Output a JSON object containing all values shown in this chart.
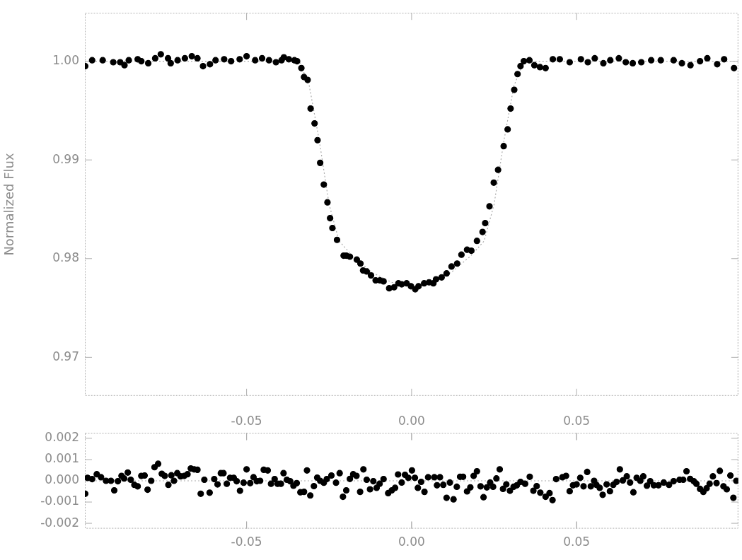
{
  "chart_data": [
    {
      "type": "scatter",
      "ylabel": "Normalized Flux",
      "xlim": [
        -0.099,
        0.099
      ],
      "xticks": [
        {
          "value": -0.05,
          "label": null
        },
        {
          "value": 0,
          "label": null
        },
        {
          "value": 0.05,
          "label": null
        }
      ],
      "ylim": [
        0.9661,
        1.0049
      ],
      "yticks": [
        0.97,
        0.98,
        0.99,
        {
          "value": 1,
          "label": "1.00"
        }
      ],
      "tick_labels": "y",
      "marker": "circle",
      "series": [
        {
          "color": "#000000",
          "x": [
            -0.0989,
            -0.0968,
            -0.0936,
            -0.0904,
            -0.0883,
            -0.087,
            -0.0857,
            -0.083,
            -0.0819,
            -0.0798,
            -0.0777,
            -0.076,
            -0.0738,
            -0.073,
            -0.0709,
            -0.0687,
            -0.0666,
            -0.0649,
            -0.0632,
            -0.0611,
            -0.0594,
            -0.0568,
            -0.0547,
            -0.0521,
            -0.05,
            -0.0474,
            -0.0453,
            -0.0432,
            -0.0411,
            -0.0394,
            -0.0387,
            -0.0372,
            -0.0355,
            -0.0347,
            -0.0334,
            -0.0326,
            -0.0315,
            -0.0306,
            -0.0294,
            -0.0285,
            -0.0277,
            -0.0266,
            -0.0255,
            -0.0247,
            -0.024,
            -0.0226,
            -0.0206,
            -0.0198,
            -0.0187,
            -0.0166,
            -0.0155,
            -0.0147,
            -0.0136,
            -0.0123,
            -0.0109,
            -0.0096,
            -0.0085,
            -0.0068,
            -0.0053,
            -0.004,
            -0.003,
            -0.0015,
            -0.0002,
            0.0011,
            0.0021,
            0.0038,
            0.0053,
            0.0066,
            0.0074,
            0.0091,
            0.0106,
            0.0121,
            0.0138,
            0.0151,
            0.0168,
            0.0181,
            0.0198,
            0.0215,
            0.0223,
            0.0236,
            0.0249,
            0.0262,
            0.0279,
            0.0291,
            0.03,
            0.0311,
            0.0321,
            0.033,
            0.034,
            0.0357,
            0.0372,
            0.0389,
            0.0406,
            0.0428,
            0.0449,
            0.0479,
            0.0513,
            0.0534,
            0.0555,
            0.0581,
            0.0602,
            0.0628,
            0.0649,
            0.067,
            0.0696,
            0.0726,
            0.0755,
            0.0794,
            0.0819,
            0.0845,
            0.0874,
            0.0896,
            0.0926,
            0.0947,
            0.0977
          ],
          "values": [
            0.9995,
            1.0001,
            1.0001,
            0.9999,
            0.9999,
            0.9996,
            1.0001,
            1.0002,
            1.0,
            0.9998,
            1.0003,
            1.0007,
            1.0003,
            0.9998,
            1.0001,
            1.0003,
            1.0005,
            1.0003,
            0.9995,
            0.9997,
            1.0001,
            1.0002,
            1.0,
            1.0002,
            1.0005,
            1.0001,
            1.0003,
            1.0001,
            0.9999,
            1.0001,
            1.0004,
            1.0002,
            1.0001,
            1.0,
            0.9993,
            0.9984,
            0.9981,
            0.9952,
            0.9937,
            0.992,
            0.9897,
            0.9875,
            0.9857,
            0.9841,
            0.9831,
            0.9819,
            0.9803,
            0.9803,
            0.9802,
            0.9799,
            0.9795,
            0.9788,
            0.9787,
            0.9783,
            0.9778,
            0.9778,
            0.9777,
            0.977,
            0.9771,
            0.9775,
            0.9774,
            0.9775,
            0.9772,
            0.9769,
            0.9772,
            0.9775,
            0.9776,
            0.9775,
            0.9779,
            0.9781,
            0.9785,
            0.9792,
            0.9795,
            0.9804,
            0.9809,
            0.9808,
            0.9818,
            0.9827,
            0.9836,
            0.9853,
            0.9877,
            0.989,
            0.9914,
            0.9931,
            0.9952,
            0.9971,
            0.9987,
            0.9995,
            1.0,
            1.0001,
            0.9996,
            0.9994,
            0.9993,
            1.0002,
            1.0002,
            0.9999,
            1.0002,
            0.9999,
            1.0003,
            0.9998,
            1.0001,
            1.0003,
            0.9999,
            0.9998,
            0.9999,
            1.0001,
            1.0001,
            1.0001,
            0.9998,
            0.9996,
            1.0,
            1.0003,
            0.9997,
            1.0002,
            0.9993
          ]
        },
        {
          "type": "line",
          "color": "#aaaaaa",
          "marker": "none",
          "line_style": "dotted",
          "x": [
            -0.099,
            -0.034,
            -0.031,
            -0.028,
            -0.025,
            -0.022,
            -0.018,
            -0.012,
            -0.006,
            0,
            0.006,
            0.012,
            0.018,
            0.022,
            0.025,
            0.028,
            0.031,
            0.034,
            0.099
          ],
          "values": [
            1,
            1,
            0.9975,
            0.992,
            0.9855,
            0.9818,
            0.9803,
            0.9786,
            0.9776,
            0.9773,
            0.9776,
            0.9786,
            0.9803,
            0.9818,
            0.9855,
            0.992,
            0.9975,
            1,
            1
          ]
        }
      ]
    },
    {
      "type": "scatter",
      "xlim": [
        -0.099,
        0.099
      ],
      "xticks": [
        -0.05,
        {
          "value": 0,
          "label": "0.00"
        },
        0.05
      ],
      "x2lim": [
        -0.099,
        0.099
      ],
      "x2ticks": [
        -0.05,
        {
          "value": 0,
          "label": "0.00"
        },
        0.05
      ],
      "ylim": [
        -0.00225,
        0.00225
      ],
      "yticks": [
        -0.002,
        -0.001,
        {
          "value": 0,
          "label": "0.000"
        },
        0.001,
        0.002
      ],
      "marker": "circle",
      "ref_lines": [
        {
          "axis": "y",
          "value": 0,
          "color": "#aaaaaa",
          "line_style": "dotted"
        }
      ],
      "series": [
        {
          "color": "#000000",
          "x": [
            -0.0989,
            -0.0982,
            -0.0968,
            -0.0954,
            -0.0941,
            -0.0926,
            -0.0911,
            -0.0901,
            -0.089,
            -0.0879,
            -0.0871,
            -0.086,
            -0.0851,
            -0.084,
            -0.083,
            -0.0819,
            -0.0809,
            -0.08,
            -0.0789,
            -0.0779,
            -0.0768,
            -0.0757,
            -0.0748,
            -0.0737,
            -0.0728,
            -0.072,
            -0.071,
            -0.07,
            -0.0689,
            -0.0679,
            -0.0669,
            -0.0659,
            -0.0649,
            -0.0639,
            -0.0628,
            -0.0612,
            -0.0598,
            -0.0588,
            -0.0578,
            -0.057,
            -0.056,
            -0.055,
            -0.0539,
            -0.053,
            -0.052,
            -0.0509,
            -0.05,
            -0.0489,
            -0.0479,
            -0.0469,
            -0.0459,
            -0.0448,
            -0.0436,
            -0.0426,
            -0.0415,
            -0.0406,
            -0.0396,
            -0.0388,
            -0.0378,
            -0.0368,
            -0.0358,
            -0.0348,
            -0.0337,
            -0.0326,
            -0.0317,
            -0.0307,
            -0.0296,
            -0.0286,
            -0.0277,
            -0.0266,
            -0.0257,
            -0.0243,
            -0.0229,
            -0.0218,
            -0.0208,
            -0.0198,
            -0.0187,
            -0.0177,
            -0.0167,
            -0.0156,
            -0.0146,
            -0.0136,
            -0.0126,
            -0.0116,
            -0.0106,
            -0.0097,
            -0.0085,
            -0.0071,
            -0.006,
            -0.005,
            -0.0041,
            -0.003,
            -0.002,
            -0.001,
            0.0001,
            0.001,
            0.0019,
            0.0029,
            0.0039,
            0.005,
            0.0069,
            0.0077,
            0.0086,
            0.0096,
            0.0106,
            0.0116,
            0.0127,
            0.0137,
            0.0147,
            0.0156,
            0.0168,
            0.0178,
            0.0188,
            0.0198,
            0.0209,
            0.0218,
            0.0228,
            0.0238,
            0.0247,
            0.0257,
            0.0267,
            0.0277,
            0.0287,
            0.0298,
            0.0309,
            0.0319,
            0.033,
            0.0344,
            0.0358,
            0.0369,
            0.0379,
            0.039,
            0.0406,
            0.0418,
            0.0427,
            0.0438,
            0.0457,
            0.0468,
            0.0479,
            0.0489,
            0.05,
            0.0511,
            0.0521,
            0.0532,
            0.0543,
            0.0553,
            0.056,
            0.057,
            0.0579,
            0.0591,
            0.0601,
            0.0611,
            0.0621,
            0.0631,
            0.064,
            0.0652,
            0.0662,
            0.0672,
            0.0682,
            0.0693,
            0.0702,
            0.0713,
            0.0723,
            0.0734,
            0.0748,
            0.0764,
            0.078,
            0.0794,
            0.0812,
            0.0823,
            0.0833,
            0.0844,
            0.0855,
            0.0863,
            0.0874,
            0.0884,
            0.0894,
            0.0903,
            0.0913,
            0.0924,
            0.0934,
            0.0945,
            0.0955,
            0.0966,
            0.0975,
            0.0984
          ],
          "values": [
            -0.00061,
            0.00014,
            8e-05,
            0.00031,
            0.00017,
            0,
            0,
            -0.00045,
            -2e-05,
            0.00023,
            0.00011,
            0.00039,
            5e-05,
            -0.00019,
            -0.00026,
            0.00023,
            0.00025,
            -0.00042,
            0,
            0.00064,
            0.0008,
            0.00033,
            0.00023,
            -0.00019,
            0.00026,
            0,
            0.00036,
            0.00021,
            0.00023,
            0.00031,
            0.00058,
            0.00054,
            0.00052,
            -0.00061,
            5e-05,
            -0.00056,
            8e-05,
            -0.00017,
            0.00036,
            0.00036,
            -0.00014,
            0.00014,
            0.00014,
            -2e-05,
            -0.00047,
            -9e-05,
            0.00054,
            -0.00011,
            0.00017,
            -2e-05,
            0,
            0.00052,
            0.00049,
            -0.00014,
            8e-05,
            -0.00014,
            -0.00014,
            0.00036,
            5e-05,
            -2e-05,
            -0.00023,
            -0.00011,
            -0.00054,
            -0.00052,
            0.00049,
            -0.00069,
            -0.00025,
            0.00015,
            0,
            -9e-05,
            8e-05,
            0.00025,
            -9e-05,
            0.00036,
            -0.00075,
            -0.00045,
            9e-05,
            0.00031,
            0.00023,
            -0.00052,
            0.00054,
            5e-05,
            -0.0004,
            -2e-05,
            -0.00033,
            -0.00014,
            8e-05,
            -0.00058,
            -0.00045,
            -0.00033,
            0.0003,
            -8e-05,
            0.00028,
            0.00014,
            0.00049,
            0.00014,
            -0.00033,
            -5e-05,
            -0.00052,
            0.00017,
            0.00017,
            -0.00021,
            0.00017,
            -0.00019,
            -0.0008,
            -8e-05,
            -0.00087,
            -0.00028,
            0.00019,
            0.00019,
            -0.0005,
            -0.00031,
            0.00023,
            0.00045,
            -0.00026,
            -0.00077,
            -0.00031,
            -8e-05,
            -0.00028,
            0.00011,
            0.00054,
            -0.00038,
            -0.00017,
            -0.00047,
            -0.00028,
            -0.00021,
            -5e-05,
            -0.00014,
            0.00019,
            -0.00047,
            -0.00025,
            -0.00056,
            -0.00075,
            -0.00058,
            -0.00091,
            8e-05,
            0.00017,
            0.00023,
            -0.00049,
            -0.00021,
            -0.00017,
            0.00014,
            -0.00026,
            0.00042,
            -0.00026,
            0,
            -0.00019,
            -0.00033,
            -0.00066,
            -0.00017,
            -0.00049,
            -0.00019,
            -5e-05,
            0.00054,
            2e-05,
            0.00021,
            -8e-05,
            -0.00054,
            0.00014,
            0,
            0.00021,
            -0.00023,
            -2e-05,
            -0.00021,
            -0.00021,
            -8e-05,
            -0.00019,
            -2e-05,
            5e-05,
            5e-05,
            0.00045,
            9e-05,
            -2e-05,
            -0.00014,
            -0.00038,
            -0.00052,
            -0.00035,
            -0.00014,
            0.00021,
            -0.00011,
            0.00047,
            -0.00026,
            -0.0004,
            0.00025,
            -0.0008,
            0
          ]
        }
      ]
    }
  ]
}
